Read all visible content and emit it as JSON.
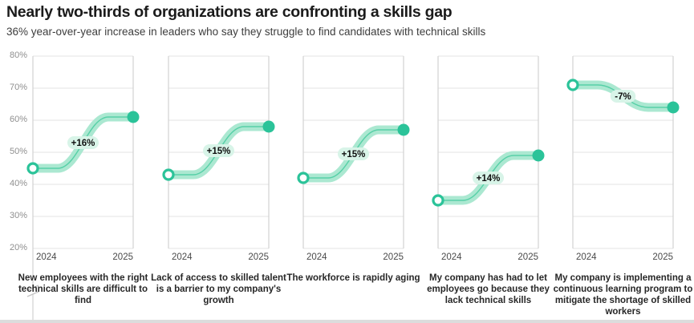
{
  "header": {
    "title": "Nearly two-thirds of organizations are confronting a skills gap",
    "subtitle": "36% year-over-year increase in leaders who say they struggle to find candidates with technical skills"
  },
  "chart_data": {
    "type": "line",
    "subtype": "slope-sigmoid-panels",
    "ylim": [
      20,
      80
    ],
    "y_ticks": [
      "80%",
      "70%",
      "60%",
      "50%",
      "40%",
      "30%",
      "20%"
    ],
    "x_categories": [
      "2024",
      "2025"
    ],
    "axis_break_on_first_panel": true,
    "grid": "horizontal-only",
    "colors": {
      "band": "#abe8d1",
      "inner_line": "#57d0a7",
      "marker": "#2bc399",
      "pill_bg": "#d8f4e8",
      "grid": "#e3e3e3",
      "axis": "#d2d2d2",
      "change_text": "#101010"
    },
    "panels": [
      {
        "label": "New employees with the right technical skills are difficult to find",
        "change": "+16%",
        "values": [
          45,
          61
        ]
      },
      {
        "label": "Lack of access to skilled talent is a barrier to my company's growth",
        "change": "+15%",
        "values": [
          43,
          58
        ]
      },
      {
        "label": "The workforce is rapidly aging",
        "change": "+15%",
        "values": [
          42,
          57
        ]
      },
      {
        "label": "My company has had to let employees go because they lack technical skills",
        "change": "+14%",
        "values": [
          35,
          49
        ]
      },
      {
        "label": "My company is implementing a continuous learning program to mitigate the shortage of skilled workers",
        "change": "-7%",
        "values": [
          71,
          64
        ]
      }
    ]
  }
}
